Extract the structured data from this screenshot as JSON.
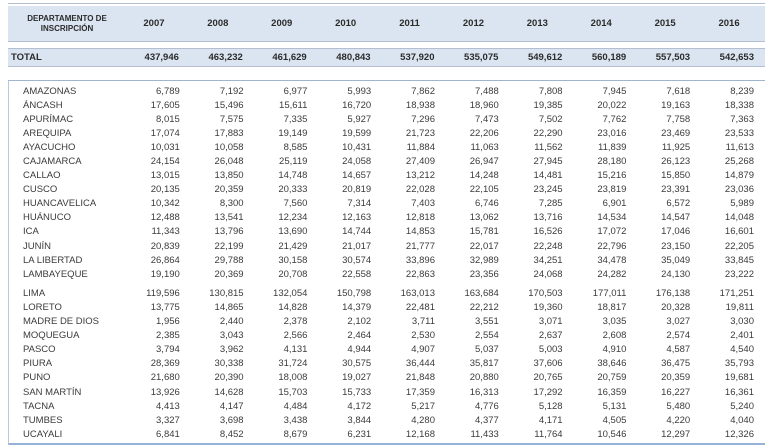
{
  "table": {
    "corner_header": "DEPARTAMENTO DE INSCRIPCIÓN",
    "years": [
      "2007",
      "2008",
      "2009",
      "2010",
      "2011",
      "2012",
      "2013",
      "2014",
      "2015",
      "2016"
    ],
    "total": {
      "label": "TOTAL",
      "values": [
        "437,946",
        "463,232",
        "461,629",
        "480,843",
        "537,920",
        "535,075",
        "549,612",
        "560,189",
        "557,503",
        "542,653"
      ]
    },
    "rows": [
      {
        "label": "AMAZONAS",
        "values": [
          "6,789",
          "7,192",
          "6,977",
          "5,993",
          "7,862",
          "7,488",
          "7,808",
          "7,945",
          "7,618",
          "8,239"
        ]
      },
      {
        "label": "ÁNCASH",
        "values": [
          "17,605",
          "15,496",
          "15,611",
          "16,720",
          "18,938",
          "18,960",
          "19,385",
          "20,022",
          "19,163",
          "18,338"
        ]
      },
      {
        "label": "APURÍMAC",
        "values": [
          "8,015",
          "7,575",
          "7,335",
          "5,927",
          "7,296",
          "7,473",
          "7,502",
          "7,762",
          "7,758",
          "7,363"
        ]
      },
      {
        "label": "AREQUIPA",
        "values": [
          "17,074",
          "17,883",
          "19,149",
          "19,599",
          "21,723",
          "22,206",
          "22,290",
          "23,016",
          "23,469",
          "23,533"
        ]
      },
      {
        "label": "AYACUCHO",
        "values": [
          "10,031",
          "10,058",
          "8,585",
          "10,431",
          "11,884",
          "11,063",
          "11,562",
          "11,839",
          "11,925",
          "11,613"
        ]
      },
      {
        "label": "CAJAMARCA",
        "values": [
          "24,154",
          "26,048",
          "25,119",
          "24,058",
          "27,409",
          "26,947",
          "27,945",
          "28,180",
          "26,123",
          "25,268"
        ]
      },
      {
        "label": "CALLAO",
        "values": [
          "13,015",
          "13,850",
          "14,748",
          "14,657",
          "13,212",
          "14,248",
          "14,481",
          "15,216",
          "15,850",
          "14,879"
        ]
      },
      {
        "label": "CUSCO",
        "values": [
          "20,135",
          "20,359",
          "20,333",
          "20,819",
          "22,028",
          "22,105",
          "23,245",
          "23,819",
          "23,391",
          "23,036"
        ]
      },
      {
        "label": "HUANCAVELICA",
        "values": [
          "10,342",
          "8,300",
          "7,560",
          "7,314",
          "7,403",
          "6,746",
          "7,285",
          "6,901",
          "6,572",
          "5,989"
        ]
      },
      {
        "label": "HUÁNUCO",
        "values": [
          "12,488",
          "13,541",
          "12,234",
          "12,163",
          "12,818",
          "13,062",
          "13,716",
          "14,534",
          "14,547",
          "14,048"
        ]
      },
      {
        "label": "ICA",
        "values": [
          "11,343",
          "13,796",
          "13,690",
          "14,744",
          "14,853",
          "15,781",
          "16,526",
          "17,072",
          "17,046",
          "16,601"
        ]
      },
      {
        "label": "JUNÍN",
        "values": [
          "20,839",
          "22,199",
          "21,429",
          "21,017",
          "21,777",
          "22,017",
          "22,248",
          "22,796",
          "23,150",
          "22,205"
        ]
      },
      {
        "label": "LA LIBERTAD",
        "values": [
          "26,864",
          "29,788",
          "30,158",
          "30,574",
          "33,896",
          "32,989",
          "34,251",
          "34,478",
          "35,049",
          "33,845"
        ]
      },
      {
        "label": "LAMBAYEQUE",
        "values": [
          "19,190",
          "20,369",
          "20,708",
          "22,558",
          "22,863",
          "23,356",
          "24,068",
          "24,282",
          "24,130",
          "23,222"
        ]
      },
      {
        "label": "LIMA",
        "gap_before": true,
        "values": [
          "119,596",
          "130,815",
          "132,054",
          "150,798",
          "163,013",
          "163,684",
          "170,503",
          "177,011",
          "176,138",
          "171,251"
        ]
      },
      {
        "label": "LORETO",
        "values": [
          "13,775",
          "14,865",
          "14,828",
          "14,379",
          "22,481",
          "22,212",
          "19,360",
          "18,817",
          "20,328",
          "19,811"
        ]
      },
      {
        "label": "MADRE DE DIOS",
        "values": [
          "1,956",
          "2,440",
          "2,378",
          "2,102",
          "3,711",
          "3,551",
          "3,071",
          "3,035",
          "3,027",
          "3,030"
        ]
      },
      {
        "label": "MOQUEGUA",
        "values": [
          "2,385",
          "3,043",
          "2,566",
          "2,464",
          "2,530",
          "2,554",
          "2,637",
          "2,608",
          "2,574",
          "2,401"
        ]
      },
      {
        "label": "PASCO",
        "values": [
          "3,794",
          "3,962",
          "4,131",
          "4,944",
          "4,907",
          "5,037",
          "5,003",
          "4,910",
          "4,587",
          "4,540"
        ]
      },
      {
        "label": "PIURA",
        "values": [
          "28,369",
          "30,338",
          "31,724",
          "30,575",
          "36,444",
          "35,817",
          "37,606",
          "38,646",
          "36,475",
          "35,793"
        ]
      },
      {
        "label": "PUNO",
        "values": [
          "21,680",
          "20,390",
          "18,008",
          "19,027",
          "21,848",
          "20,880",
          "20,765",
          "20,759",
          "20,359",
          "19,681"
        ]
      },
      {
        "label": "SAN MARTÍN",
        "values": [
          "13,926",
          "14,628",
          "15,703",
          "15,733",
          "17,359",
          "16,313",
          "17,292",
          "16,359",
          "16,227",
          "16,361"
        ]
      },
      {
        "label": "TACNA",
        "values": [
          "4,413",
          "4,147",
          "4,484",
          "4,172",
          "5,217",
          "4,776",
          "5,128",
          "5,131",
          "5,480",
          "5,240"
        ]
      },
      {
        "label": "TUMBES",
        "values": [
          "3,327",
          "3,698",
          "3,438",
          "3,844",
          "4,280",
          "4,377",
          "4,171",
          "4,505",
          "4,220",
          "4,040"
        ]
      },
      {
        "label": "UCAYALI",
        "values": [
          "6,841",
          "8,452",
          "8,679",
          "6,231",
          "12,168",
          "11,433",
          "11,764",
          "10,546",
          "12,297",
          "12,326"
        ]
      }
    ]
  },
  "colors": {
    "band_background": "#dbe5f1",
    "separator_line": "#b3bfd0",
    "accent_blue_line": "#95b3d7",
    "text": "#3b3b3b"
  }
}
